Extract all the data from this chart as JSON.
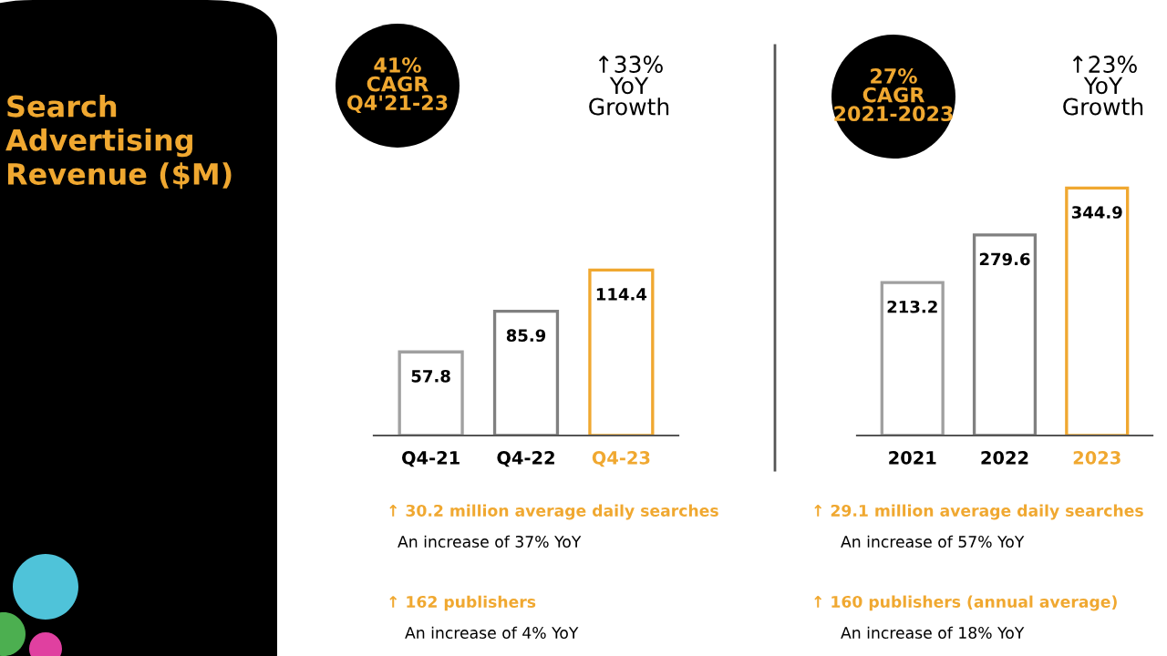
{
  "chart_data": [
    {
      "type": "bar",
      "title": "Search\nAdvertising\nRevenue ($M)",
      "categories": [
        "Q4-21",
        "Q4-22",
        "Q4-23"
      ],
      "values": [
        57.8,
        85.9,
        114.4
      ],
      "colors": [
        "#a0a0a0",
        "#808080",
        "#f0a830"
      ],
      "data_labels": true,
      "grid": false,
      "annotations": [
        "41%\nCAGR\nQ4'21-23",
        "↑33%\nYoY\nGrowth",
        "↑ 30.2 million average daily searches",
        "An increase of 37% YoY",
        "↑ 162 publishers",
        "An increase of 4% YoY"
      ]
    },
    {
      "type": "bar",
      "categories": [
        "2021",
        "2022",
        "2023"
      ],
      "values": [
        213.2,
        279.6,
        344.9
      ],
      "colors": [
        "#a0a0a0",
        "#808080",
        "#f0a830"
      ],
      "data_labels": true,
      "grid": false,
      "annotations": [
        "27%\nCAGR\n2021-2023",
        "↑23%\nYoY\nGrowth",
        "↑ 29.1 million average daily searches",
        "An increase of 57% YoY",
        "↑ 160 publishers (annual average)",
        "An increase of 18% YoY"
      ]
    }
  ]
}
